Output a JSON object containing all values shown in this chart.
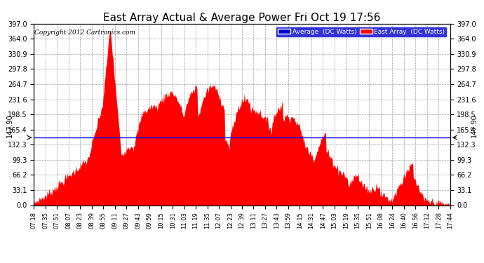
{
  "title": "East Array Actual & Average Power Fri Oct 19 17:56",
  "copyright": "Copyright 2012 Cartronics.com",
  "average_value": 147.9,
  "ymax": 397.0,
  "ymin": 0.0,
  "yticks": [
    0.0,
    33.1,
    66.2,
    99.3,
    132.3,
    165.4,
    198.5,
    231.6,
    264.7,
    297.8,
    330.9,
    364.0,
    397.0
  ],
  "xtick_labels": [
    "07:18",
    "07:35",
    "07:51",
    "08:07",
    "08:23",
    "08:39",
    "08:55",
    "09:11",
    "09:27",
    "09:43",
    "09:59",
    "10:15",
    "10:31",
    "11:03",
    "11:19",
    "11:35",
    "12:07",
    "12:23",
    "12:39",
    "13:11",
    "13:27",
    "13:43",
    "13:59",
    "14:15",
    "14:31",
    "14:47",
    "15:03",
    "15:19",
    "15:35",
    "15:51",
    "16:08",
    "16:24",
    "16:40",
    "16:56",
    "17:12",
    "17:28",
    "17:44"
  ],
  "fill_color": "#FF0000",
  "avg_line_color": "#0000FF",
  "bg_color": "#FFFFFF",
  "plot_bg_color": "#FFFFFF",
  "grid_color": "#AAAAAA",
  "title_fontsize": 11,
  "legend_labels": [
    "Average  (DC Watts)",
    "East Array  (DC Watts)"
  ],
  "legend_bg_color": "#0000CD",
  "legend_ea_color": "#FF0000"
}
